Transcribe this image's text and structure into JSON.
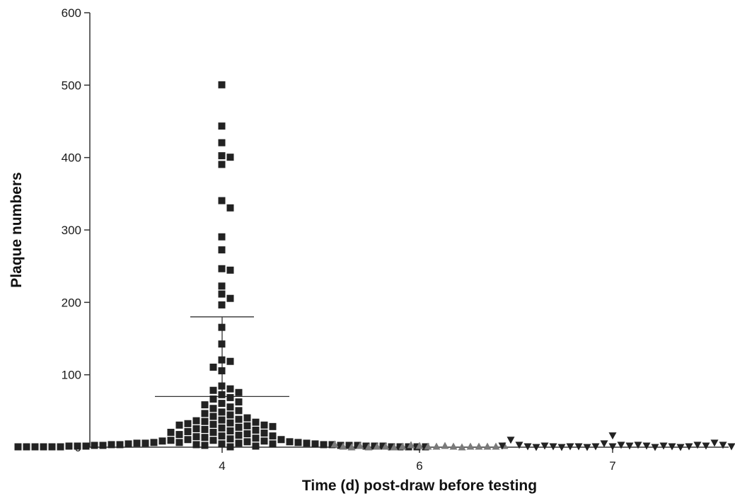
{
  "chart_data": {
    "type": "scatter",
    "title": "",
    "xlabel": "Time (d) post-draw before testing",
    "ylabel": "Plaque numbers",
    "categories": [
      "4",
      "6",
      "7"
    ],
    "ylim": [
      0,
      600
    ],
    "yticks": [
      0,
      100,
      200,
      300,
      400,
      500,
      600
    ],
    "grid": false,
    "legend": "none",
    "series": [
      {
        "category": "4",
        "marker": "square",
        "color": "#222222",
        "mean": 70,
        "sd_upper": 180,
        "values": [
          500,
          443,
          420,
          402,
          400,
          390,
          340,
          330,
          290,
          272,
          246,
          244,
          222,
          211,
          205,
          196,
          165,
          142,
          120,
          118,
          110,
          105,
          84,
          80,
          78,
          75,
          72,
          68,
          66,
          62,
          60,
          58,
          55,
          53,
          50,
          48,
          46,
          44,
          42,
          40,
          38,
          37,
          36,
          35,
          34,
          33,
          32,
          31,
          30,
          30,
          29,
          28,
          27,
          26,
          25,
          24,
          23,
          22,
          21,
          20,
          20,
          19,
          18,
          17,
          16,
          15,
          15,
          14,
          13,
          12,
          11,
          10,
          10,
          9,
          9,
          8,
          8,
          7,
          7,
          6,
          6,
          6,
          5,
          5,
          5,
          5,
          4,
          4,
          4,
          4,
          3,
          3,
          3,
          3,
          3,
          2,
          2,
          2,
          2,
          2,
          2,
          1,
          1,
          1,
          1,
          1,
          1,
          1,
          0,
          0,
          0,
          0,
          0,
          0,
          0,
          0,
          0,
          0,
          0,
          0
        ]
      },
      {
        "category": "6",
        "marker": "triangle-up",
        "color": "#7a7a7a",
        "values": [
          2,
          1,
          3,
          1,
          1,
          2,
          0,
          1,
          1,
          0,
          1,
          1,
          0,
          1,
          2,
          1,
          0,
          1,
          1,
          2,
          4
        ]
      },
      {
        "category": "7",
        "marker": "triangle-down",
        "color": "#222222",
        "values": [
          1,
          3,
          5,
          2,
          1,
          3,
          0,
          2,
          1,
          0,
          1,
          2,
          0,
          1,
          1,
          0,
          2,
          1,
          0,
          3,
          1,
          2,
          3,
          6,
          10,
          16,
          3,
          2,
          1
        ]
      }
    ]
  }
}
